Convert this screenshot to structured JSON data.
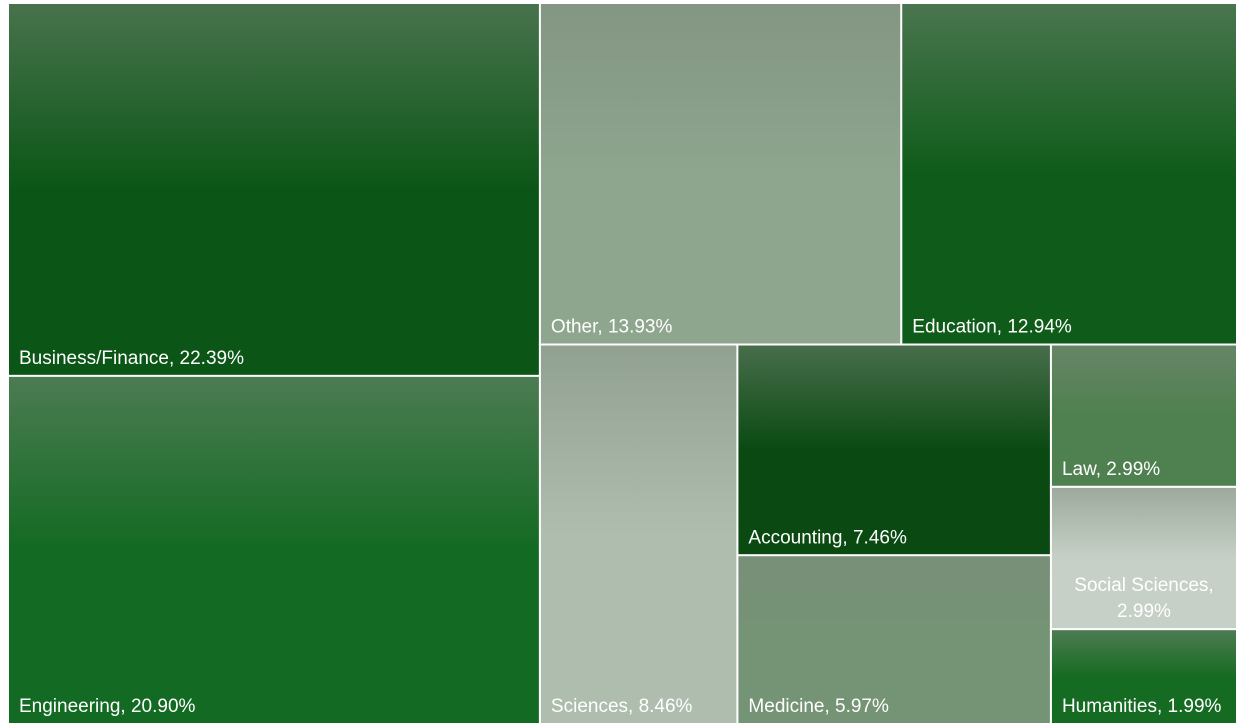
{
  "chart_data": {
    "type": "treemap",
    "values": [
      22.39,
      20.9,
      13.93,
      12.94,
      8.46,
      7.46,
      5.97,
      2.99,
      2.99,
      1.99
    ],
    "value_labels": [
      "Business/Finance, 22.39%",
      "Engineering, 20.90%",
      "Other, 13.93%",
      "Education, 12.94%",
      "Sciences, 8.46%",
      "Accounting, 7.46%",
      "Medicine, 5.97%",
      "Law, 2.99%",
      "Social Sciences, 2.99%",
      "Humanities, 1.99%"
    ],
    "colors": [
      "#0b5616",
      "#136a22",
      "#8ea58e",
      "#0f5c1a",
      "#aebdae",
      "#0a4a12",
      "#759475",
      "#4f804f",
      "#c6d0c6",
      "#166b22"
    ]
  }
}
